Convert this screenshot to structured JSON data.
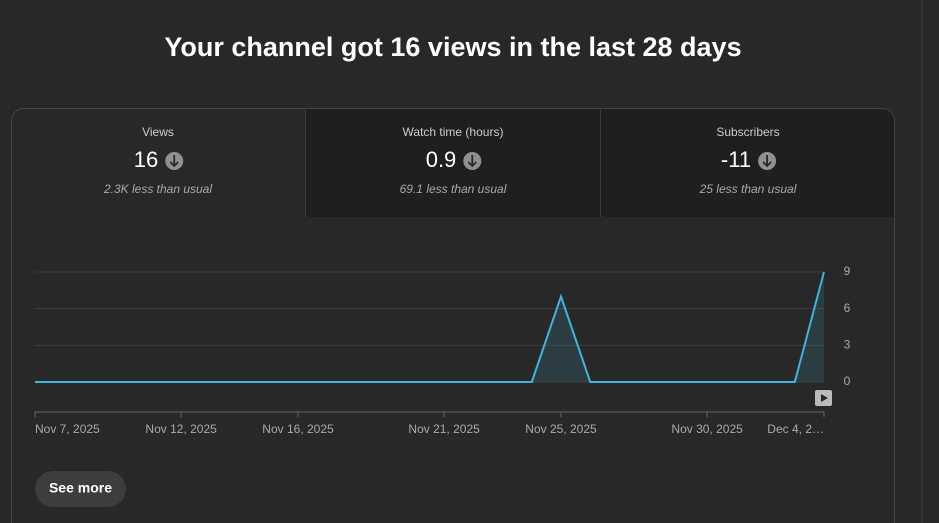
{
  "heading": "Your channel got 16 views in the last 28 days",
  "metrics": [
    {
      "label": "Views",
      "value": "16",
      "note": "2.3K less than usual"
    },
    {
      "label": "Watch time (hours)",
      "value": "0.9",
      "note": "69.1 less than usual"
    },
    {
      "label": "Subscribers",
      "value": "-11",
      "note": "25 less than usual"
    }
  ],
  "chart_data": {
    "type": "line",
    "categories": [
      "Nov 7, 2025",
      null,
      null,
      null,
      null,
      "Nov 12, 2025",
      null,
      null,
      null,
      "Nov 16, 2025",
      null,
      null,
      null,
      null,
      "Nov 21, 2025",
      null,
      null,
      null,
      "Nov 25, 2025",
      null,
      null,
      null,
      null,
      "Nov 30, 2025",
      null,
      null,
      null,
      "Dec 4, 2…"
    ],
    "values": [
      0,
      0,
      0,
      0,
      0,
      0,
      0,
      0,
      0,
      0,
      0,
      0,
      0,
      0,
      0,
      0,
      0,
      0,
      7,
      0,
      0,
      0,
      0,
      0,
      0,
      0,
      0,
      9
    ],
    "color": "#3fb4dc",
    "ylim": [
      0,
      9
    ],
    "yticks": [
      0,
      3,
      6,
      9
    ],
    "grid": true
  },
  "button": "See more"
}
